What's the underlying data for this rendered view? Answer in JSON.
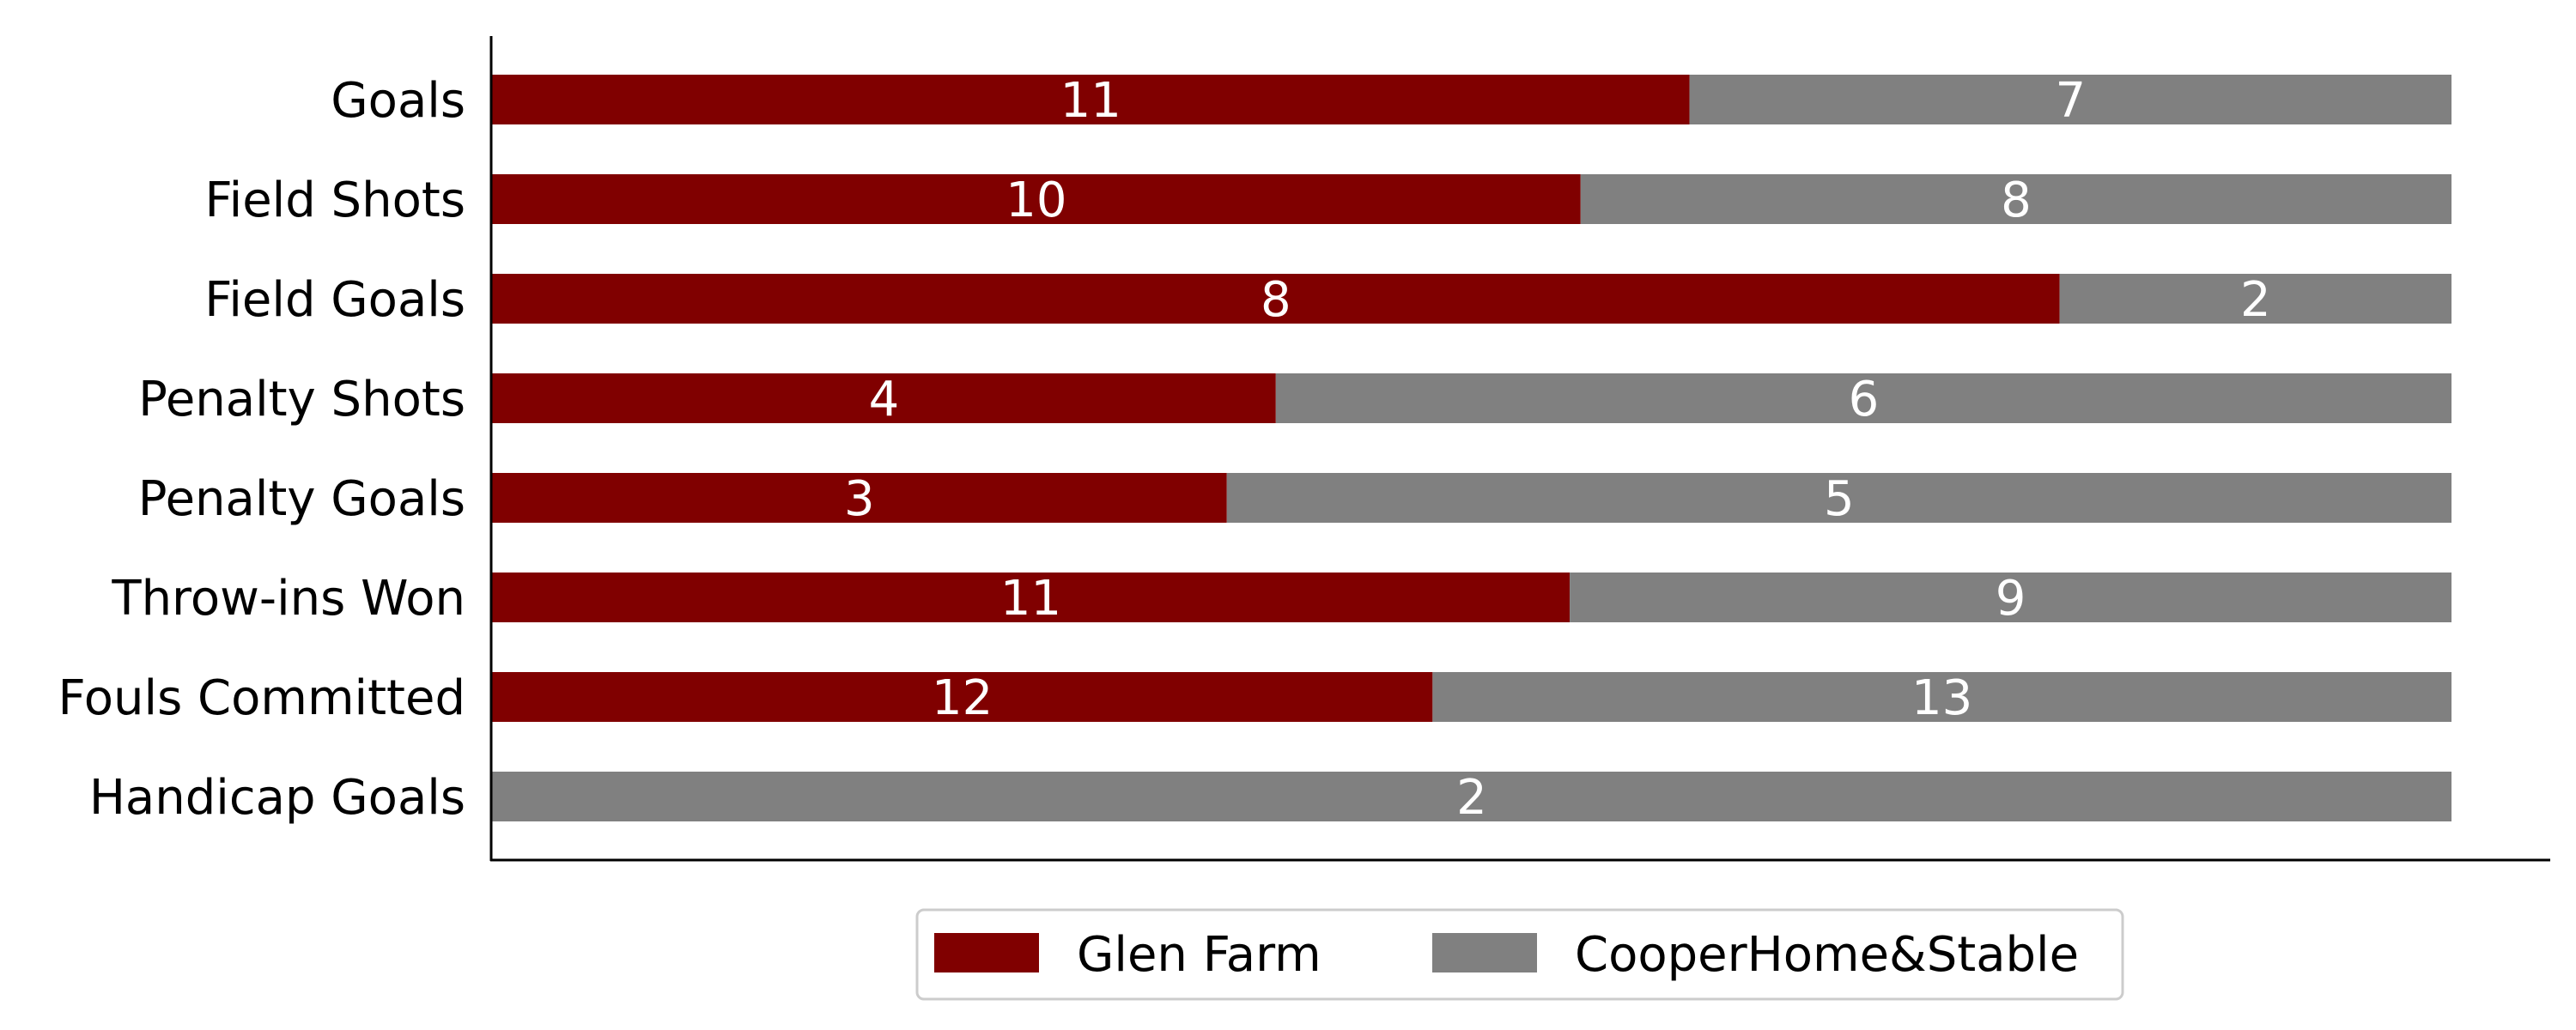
{
  "chart_data": {
    "type": "bar",
    "orientation": "horizontal",
    "stacked": "percent",
    "categories": [
      "Goals",
      "Field Shots",
      "Field Goals",
      "Penalty Shots",
      "Penalty Goals",
      "Throw-ins Won",
      "Fouls Committed",
      "Handicap Goals"
    ],
    "series": [
      {
        "name": "Glen Farm",
        "color": "#800000",
        "values": [
          11,
          10,
          8,
          4,
          3,
          11,
          12,
          0
        ]
      },
      {
        "name": "CooperHome&Stable",
        "color": "#808080",
        "values": [
          7,
          8,
          2,
          6,
          5,
          9,
          13,
          2
        ]
      }
    ],
    "title": "",
    "xlabel": "",
    "ylabel": "",
    "grid": false,
    "legend_position": "bottom-center"
  }
}
